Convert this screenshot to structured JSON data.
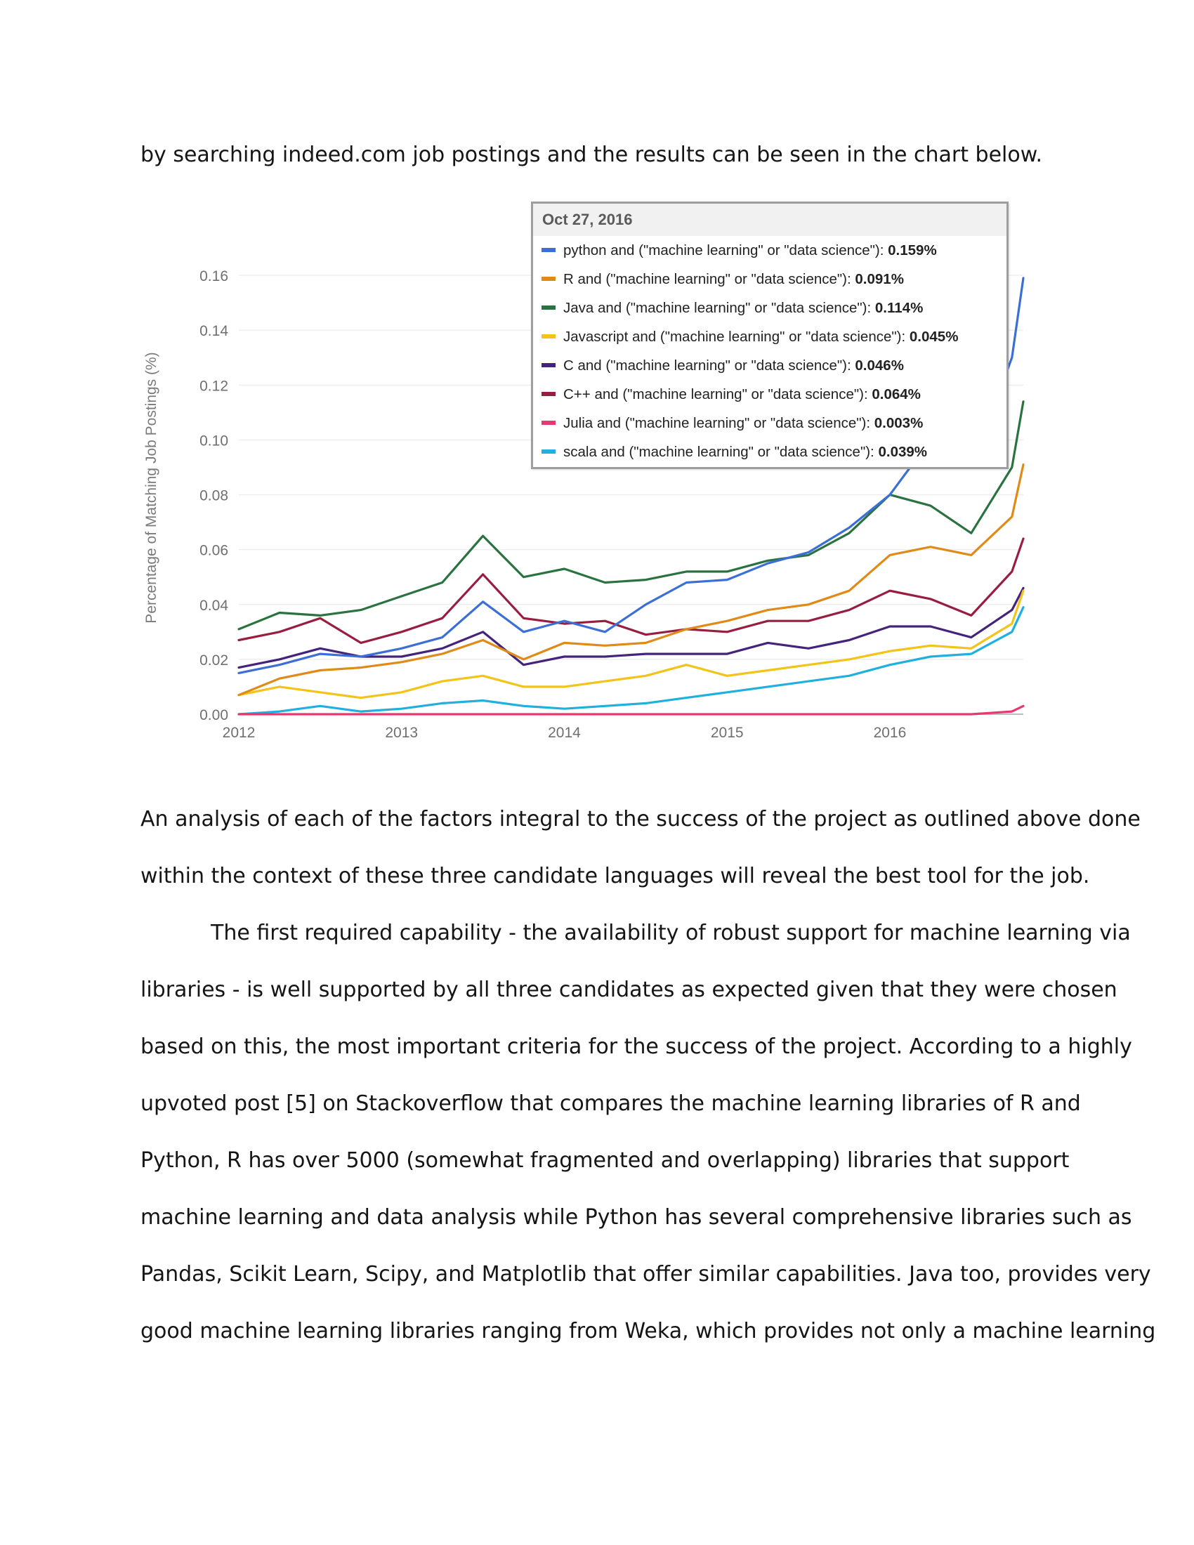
{
  "intro": {
    "line1": "by searching indeed.com job postings and the results can be seen in the chart below."
  },
  "tooltip": {
    "date": "Oct 27, 2016",
    "rows": [
      {
        "label": "python and (\"machine learning\" or \"data science\"):",
        "value": "0.159%"
      },
      {
        "label": "R and (\"machine learning\" or \"data science\"):",
        "value": "0.091%"
      },
      {
        "label": "Java and (\"machine learning\" or \"data science\"):",
        "value": "0.114%"
      },
      {
        "label": "Javascript and (\"machine learning\" or \"data science\"):",
        "value": "0.045%"
      },
      {
        "label": "C and (\"machine learning\" or \"data science\"):",
        "value": "0.046%"
      },
      {
        "label": "C++ and (\"machine learning\" or \"data science\"):",
        "value": "0.064%"
      },
      {
        "label": "Julia and (\"machine learning\" or \"data science\"):",
        "value": "0.003%"
      },
      {
        "label": "scala and (\"machine learning\" or \"data science\"):",
        "value": "0.039%"
      }
    ]
  },
  "chart_data": {
    "type": "line",
    "title": "",
    "xlabel": "",
    "ylabel": "Percentage of Matching Job Postings (%)",
    "xlim": [
      2012.0,
      2016.82
    ],
    "ylim": [
      0.0,
      0.16
    ],
    "x_ticks": [
      "2012",
      "2013",
      "2014",
      "2015",
      "2016"
    ],
    "y_ticks": [
      "0.00",
      "0.02",
      "0.04",
      "0.06",
      "0.08",
      "0.10",
      "0.12",
      "0.14",
      "0.16"
    ],
    "grid": true,
    "x": [
      2012.0,
      2012.25,
      2012.5,
      2012.75,
      2013.0,
      2013.25,
      2013.5,
      2013.75,
      2014.0,
      2014.25,
      2014.5,
      2014.75,
      2015.0,
      2015.25,
      2015.5,
      2015.75,
      2016.0,
      2016.25,
      2016.5,
      2016.75,
      2016.82
    ],
    "series": [
      {
        "name": "python and (\"machine learning\" or \"data science\")",
        "color": "#3b6fd6",
        "values": [
          0.015,
          0.018,
          0.022,
          0.021,
          0.024,
          0.028,
          0.041,
          0.03,
          0.034,
          0.03,
          0.04,
          0.048,
          0.049,
          0.055,
          0.059,
          0.068,
          0.08,
          0.1,
          0.09,
          0.13,
          0.159
        ]
      },
      {
        "name": "R and (\"machine learning\" or \"data science\")",
        "color": "#e08a18",
        "values": [
          0.007,
          0.013,
          0.016,
          0.017,
          0.019,
          0.022,
          0.027,
          0.02,
          0.026,
          0.025,
          0.026,
          0.031,
          0.034,
          0.038,
          0.04,
          0.045,
          0.058,
          0.061,
          0.058,
          0.072,
          0.091
        ]
      },
      {
        "name": "Java and (\"machine learning\" or \"data science\")",
        "color": "#2a7340",
        "values": [
          0.031,
          0.037,
          0.036,
          0.038,
          0.043,
          0.048,
          0.065,
          0.05,
          0.053,
          0.048,
          0.049,
          0.052,
          0.052,
          0.056,
          0.058,
          0.066,
          0.08,
          0.076,
          0.066,
          0.09,
          0.114
        ]
      },
      {
        "name": "Javascript and (\"machine learning\" or \"data science\")",
        "color": "#f2c417",
        "values": [
          0.007,
          0.01,
          0.008,
          0.006,
          0.008,
          0.012,
          0.014,
          0.01,
          0.01,
          0.012,
          0.014,
          0.018,
          0.014,
          0.016,
          0.018,
          0.02,
          0.023,
          0.025,
          0.024,
          0.033,
          0.045
        ]
      },
      {
        "name": "C and (\"machine learning\" or \"data science\")",
        "color": "#44237a",
        "values": [
          0.017,
          0.02,
          0.024,
          0.021,
          0.021,
          0.024,
          0.03,
          0.018,
          0.021,
          0.021,
          0.022,
          0.022,
          0.022,
          0.026,
          0.024,
          0.027,
          0.032,
          0.032,
          0.028,
          0.038,
          0.046
        ]
      },
      {
        "name": "C++ and (\"machine learning\" or \"data science\")",
        "color": "#981e41",
        "values": [
          0.027,
          0.03,
          0.035,
          0.026,
          0.03,
          0.035,
          0.051,
          0.035,
          0.033,
          0.034,
          0.029,
          0.031,
          0.03,
          0.034,
          0.034,
          0.038,
          0.045,
          0.042,
          0.036,
          0.052,
          0.064
        ]
      },
      {
        "name": "Julia and (\"machine learning\" or \"data science\")",
        "color": "#e53970",
        "values": [
          0.0,
          0.0,
          0.0,
          0.0,
          0.0,
          0.0,
          0.0,
          0.0,
          0.0,
          0.0,
          0.0,
          0.0,
          0.0,
          0.0,
          0.0,
          0.0,
          0.0,
          0.0,
          0.0,
          0.001,
          0.003
        ]
      },
      {
        "name": "scala and (\"machine learning\" or \"data science\")",
        "color": "#1fb0de",
        "values": [
          0.0,
          0.001,
          0.003,
          0.001,
          0.002,
          0.004,
          0.005,
          0.003,
          0.002,
          0.003,
          0.004,
          0.006,
          0.008,
          0.01,
          0.012,
          0.014,
          0.018,
          0.021,
          0.022,
          0.03,
          0.039
        ]
      }
    ]
  },
  "analysis": {
    "line1": "An analysis of each of the factors integral to the success of the project as outlined above done",
    "line2": "within the context of these three candidate languages will reveal the best tool for the job."
  },
  "first_capability": {
    "line1": "The first required capability - the availability of robust support for machine learning via",
    "line2": "libraries - is well supported by all three candidates as expected given that they were chosen",
    "line3": "based on this, the most important criteria for the success of the project. According to a highly",
    "line4": "upvoted post [5] on Stackoverflow that compares the machine learning libraries of R and",
    "line5": "Python, R has over 5000 (somewhat fragmented and overlapping) libraries that support",
    "line6": "machine learning and data analysis while Python has several comprehensive libraries such as",
    "line7": "Pandas, Scikit Learn, Scipy, and Matplotlib that offer similar capabilities. Java too, provides very",
    "line8": "good machine learning libraries ranging from Weka, which provides not only a machine learning"
  }
}
